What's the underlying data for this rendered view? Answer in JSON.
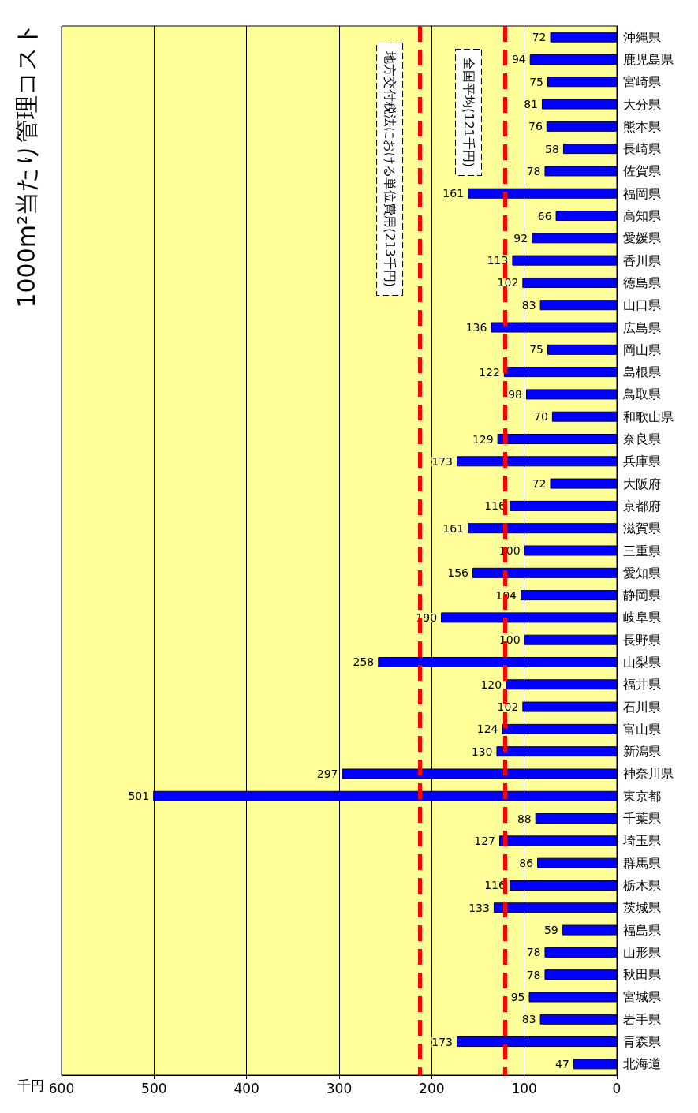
{
  "chart_data": {
    "type": "bar",
    "orientation": "horizontal",
    "title": "1000m²当たり管理コスト",
    "xlabel": "千円",
    "categories": [
      "沖縄県",
      "鹿児島県",
      "宮崎県",
      "大分県",
      "熊本県",
      "長崎県",
      "佐賀県",
      "福岡県",
      "高知県",
      "愛媛県",
      "香川県",
      "徳島県",
      "山口県",
      "広島県",
      "岡山県",
      "島根県",
      "鳥取県",
      "和歌山県",
      "奈良県",
      "兵庫県",
      "大阪府",
      "京都府",
      "滋賀県",
      "三重県",
      "愛知県",
      "静岡県",
      "岐阜県",
      "長野県",
      "山梨県",
      "福井県",
      "石川県",
      "富山県",
      "新潟県",
      "神奈川県",
      "東京都",
      "千葉県",
      "埼玉県",
      "群馬県",
      "栃木県",
      "茨城県",
      "福島県",
      "山形県",
      "秋田県",
      "宮城県",
      "岩手県",
      "青森県",
      "北海道"
    ],
    "values": [
      72,
      94,
      75,
      81,
      76,
      58,
      78,
      161,
      66,
      92,
      113,
      102,
      83,
      136,
      75,
      122,
      98,
      70,
      129,
      173,
      72,
      116,
      161,
      100,
      156,
      104,
      190,
      100,
      258,
      120,
      102,
      124,
      130,
      297,
      501,
      88,
      127,
      86,
      116,
      133,
      59,
      78,
      78,
      95,
      83,
      173,
      47
    ],
    "color": "#0000ff",
    "data_labels": true,
    "xlim": [
      600,
      0
    ],
    "xticks": [
      0,
      100,
      200,
      300,
      400,
      500,
      600
    ],
    "grid": "x",
    "ref_lines": [
      {
        "axis": "x",
        "value": 213,
        "label": "地方交付税法における単位費用(213千円)",
        "color": "#ff0000",
        "line_style": "dashed"
      },
      {
        "axis": "x",
        "value": 121,
        "label": "全国平均(121千円)",
        "color": "#ff0000",
        "line_style": "dashed"
      }
    ]
  }
}
